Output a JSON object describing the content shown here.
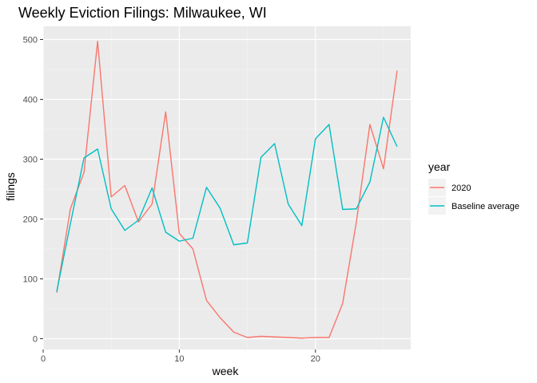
{
  "chart_data": {
    "type": "line",
    "title": "Weekly Eviction Filings: Milwaukee, WI",
    "xlabel": "week",
    "ylabel": "filings",
    "xlim": [
      0,
      27
    ],
    "ylim": [
      -18,
      522
    ],
    "x_ticks": [
      0,
      10,
      20
    ],
    "y_ticks": [
      0,
      100,
      200,
      300,
      400,
      500
    ],
    "grid": true,
    "legend_position": "right",
    "legend_title": "year",
    "series": [
      {
        "name": "2020",
        "color": "#F8766D",
        "x": [
          1,
          2,
          3,
          4,
          5,
          6,
          7,
          8,
          9,
          10,
          11,
          12,
          13,
          14,
          15,
          16,
          17,
          18,
          19,
          20,
          21,
          22,
          23,
          24,
          25,
          26
        ],
        "y": [
          77,
          217,
          278,
          497,
          237,
          256,
          195,
          225,
          379,
          176,
          150,
          64,
          35,
          11,
          2,
          4,
          3,
          2,
          1,
          2,
          2,
          59,
          194,
          358,
          284,
          448
        ]
      },
      {
        "name": "Baseline average",
        "color": "#00BFC4",
        "x": [
          1,
          2,
          3,
          4,
          5,
          6,
          7,
          8,
          9,
          10,
          11,
          12,
          13,
          14,
          15,
          16,
          17,
          18,
          19,
          20,
          21,
          22,
          23,
          24,
          25,
          26
        ],
        "y": [
          79,
          192,
          302,
          317,
          217,
          181,
          198,
          252,
          178,
          163,
          168,
          253,
          218,
          157,
          160,
          303,
          326,
          225,
          189,
          334,
          358,
          216,
          217,
          262,
          370,
          321
        ]
      }
    ]
  }
}
